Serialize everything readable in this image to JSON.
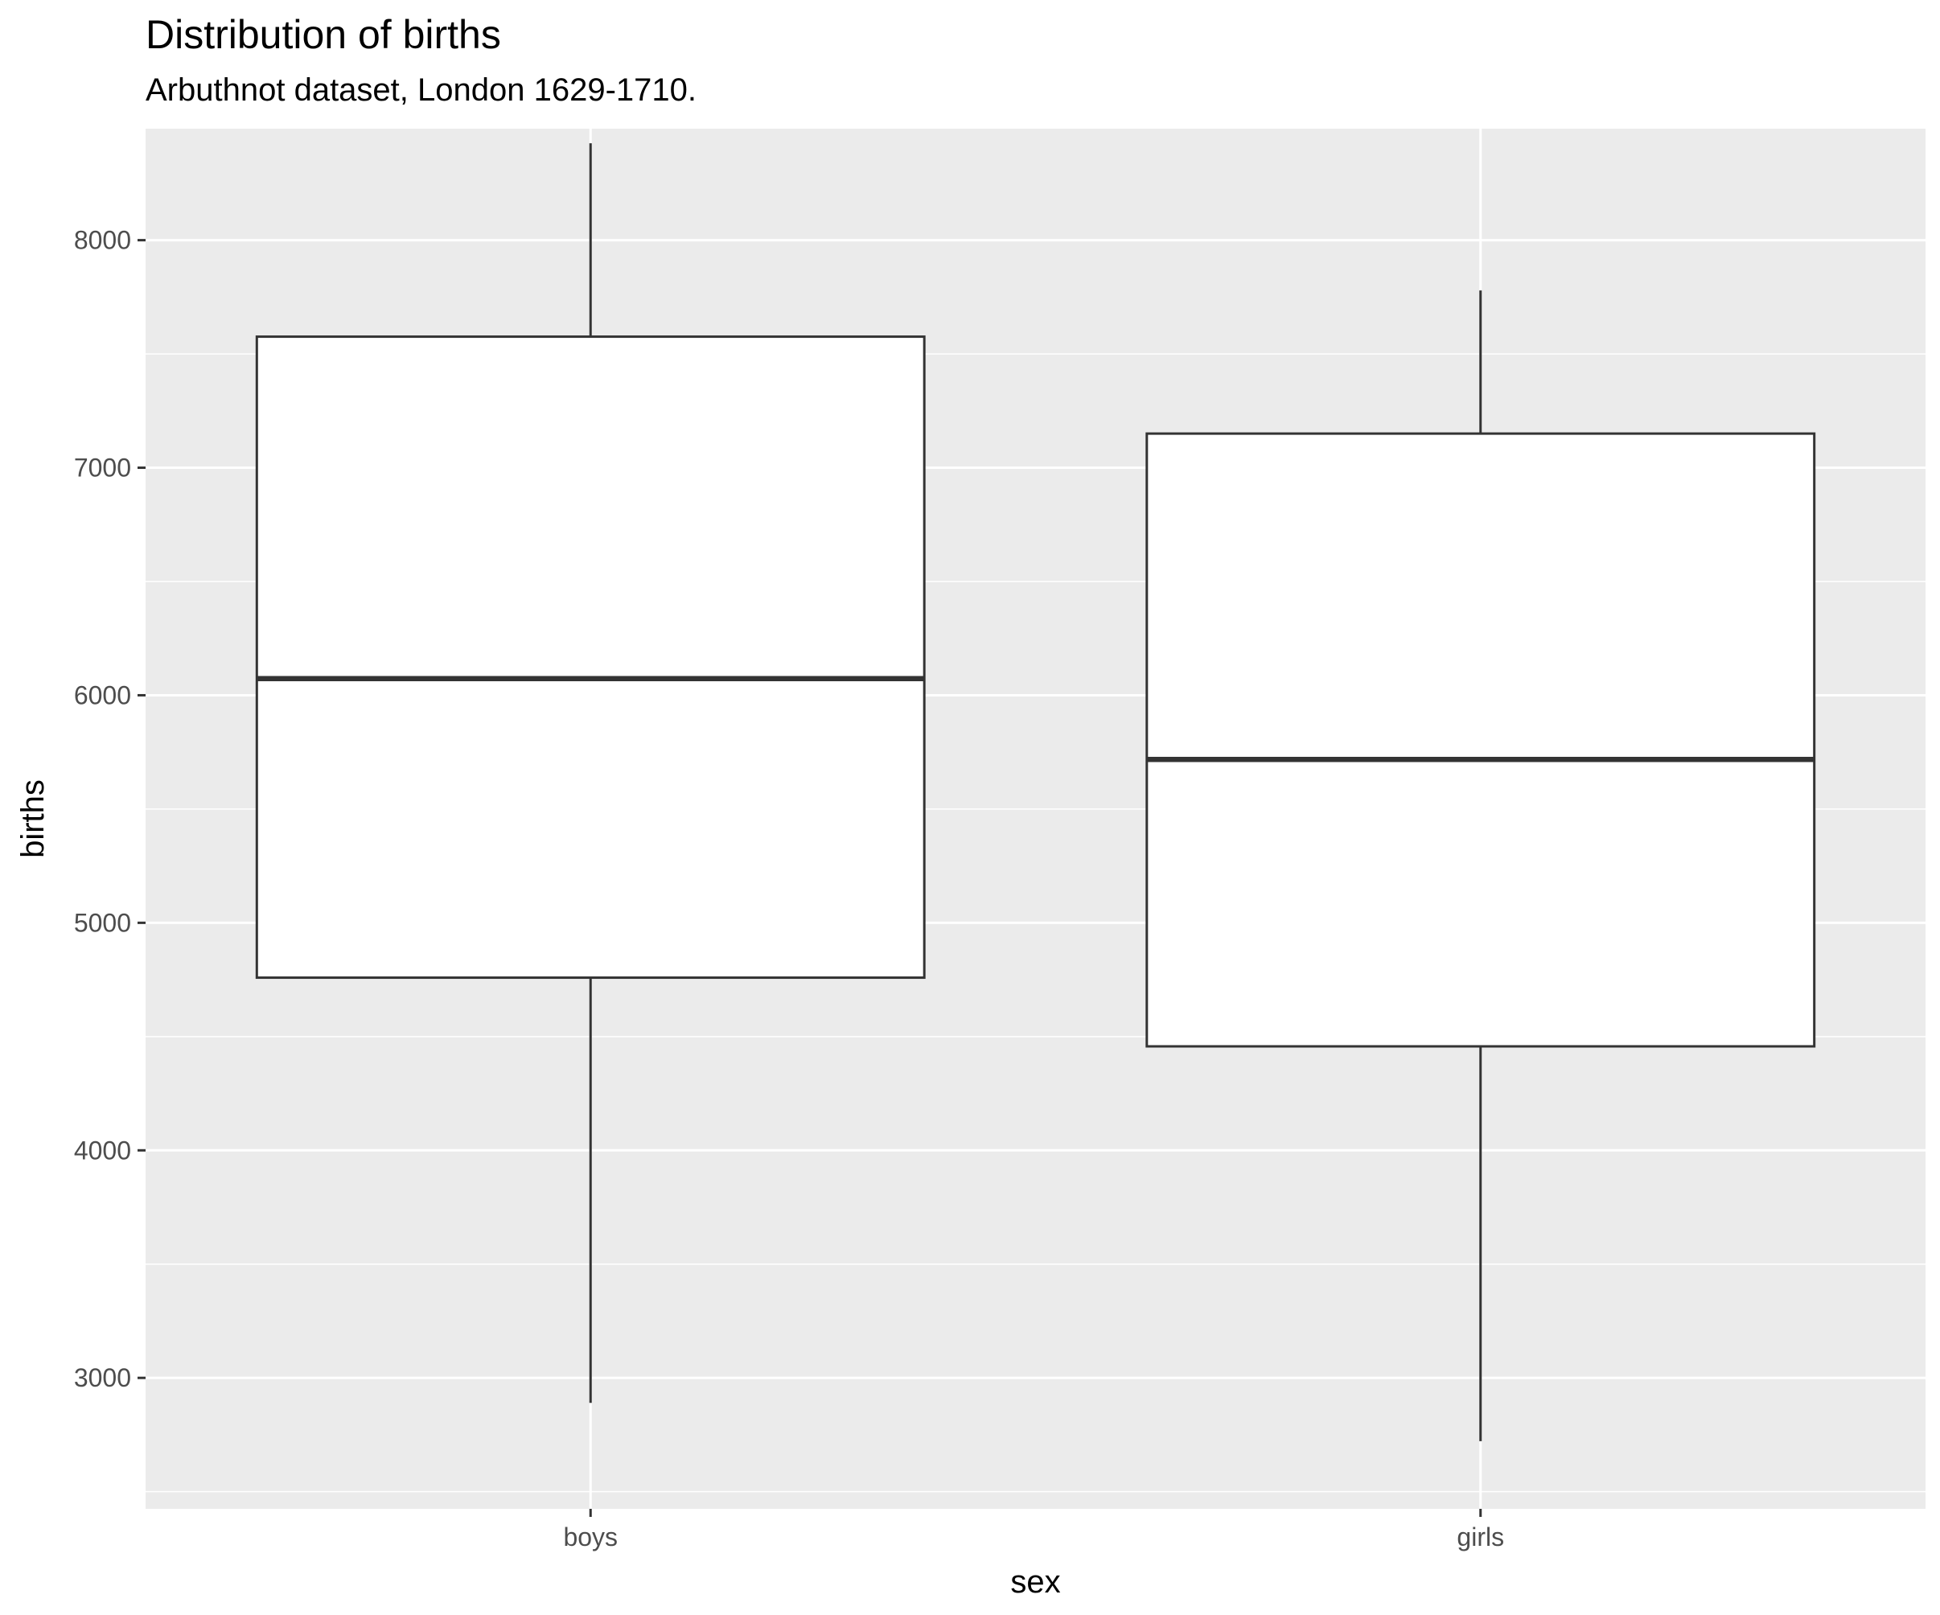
{
  "chart_data": {
    "type": "boxplot",
    "title": "Distribution of births",
    "subtitle": "Arbuthnot dataset, London 1629-1710.",
    "xlabel": "sex",
    "ylabel": "births",
    "categories": [
      "boys",
      "girls"
    ],
    "boxes": [
      {
        "category": "boys",
        "min": 2890,
        "q1": 4759,
        "median": 6073,
        "q3": 7576,
        "max": 8426
      },
      {
        "category": "girls",
        "min": 2722,
        "q1": 4457,
        "median": 5718,
        "q3": 7150,
        "max": 7779
      }
    ],
    "yticks": [
      3000,
      4000,
      5000,
      6000,
      7000,
      8000
    ],
    "ylim": [
      2424.5,
      8490
    ],
    "grid": true,
    "colors": {
      "panel_background": "#ebebeb",
      "grid": "#ffffff",
      "box_fill": "#ffffff",
      "box_stroke": "#333333",
      "tick_text": "#4d4d4d"
    }
  }
}
